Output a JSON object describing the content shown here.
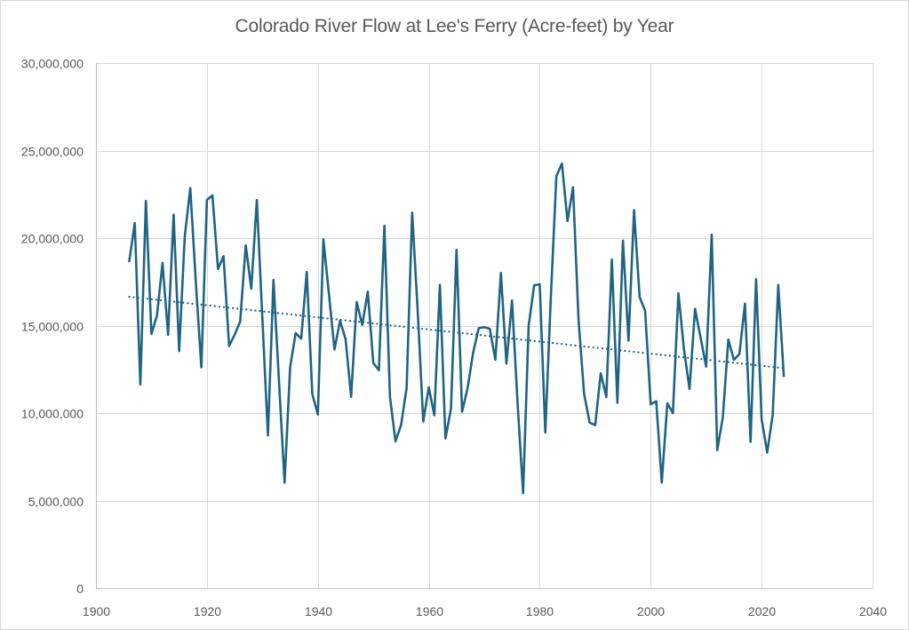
{
  "chart_data": {
    "type": "line",
    "title": "Colorado River Flow at Lee's Ferry (Acre-feet) by Year",
    "xlabel": "",
    "ylabel": "",
    "xlim": [
      1900,
      2040
    ],
    "ylim": [
      0,
      30000000
    ],
    "x_ticks": [
      1900,
      1920,
      1940,
      1960,
      1980,
      2000,
      2020,
      2040
    ],
    "x_tick_labels": [
      "1900",
      "1920",
      "1940",
      "1960",
      "1980",
      "2000",
      "2020",
      "2040"
    ],
    "y_ticks": [
      0,
      5000000,
      10000000,
      15000000,
      20000000,
      25000000,
      30000000
    ],
    "y_tick_labels": [
      "0",
      "5,000,000",
      "10,000,000",
      "15,000,000",
      "20,000,000",
      "25,000,000",
      "30,000,000"
    ],
    "grid": true,
    "legend": "none",
    "series": [
      {
        "name": "Flow",
        "color": "#1f6483",
        "x": [
          1906,
          1907,
          1908,
          1909,
          1910,
          1911,
          1912,
          1913,
          1914,
          1915,
          1916,
          1917,
          1918,
          1919,
          1920,
          1921,
          1922,
          1923,
          1924,
          1925,
          1926,
          1927,
          1928,
          1929,
          1930,
          1931,
          1932,
          1933,
          1934,
          1935,
          1936,
          1937,
          1938,
          1939,
          1940,
          1941,
          1942,
          1943,
          1944,
          1945,
          1946,
          1947,
          1948,
          1949,
          1950,
          1951,
          1952,
          1953,
          1954,
          1955,
          1956,
          1957,
          1958,
          1959,
          1960,
          1961,
          1962,
          1963,
          1964,
          1965,
          1966,
          1967,
          1968,
          1969,
          1970,
          1971,
          1972,
          1973,
          1974,
          1975,
          1976,
          1977,
          1978,
          1979,
          1980,
          1981,
          1982,
          1983,
          1984,
          1985,
          1986,
          1987,
          1988,
          1989,
          1990,
          1991,
          1992,
          1993,
          1994,
          1995,
          1996,
          1997,
          1998,
          1999,
          2000,
          2001,
          2002,
          2003,
          2004,
          2005,
          2006,
          2007,
          2008,
          2009,
          2010,
          2011,
          2012,
          2013,
          2014,
          2015,
          2016,
          2017,
          2018,
          2019,
          2020,
          2021,
          2022,
          2023,
          2024
        ],
        "values": [
          18680000,
          20860000,
          11640000,
          22130000,
          14530000,
          15580000,
          18580000,
          14480000,
          21340000,
          13550000,
          20070000,
          22860000,
          17500000,
          12620000,
          22180000,
          22440000,
          18240000,
          18970000,
          13840000,
          14480000,
          15240000,
          19590000,
          17110000,
          22180000,
          15400000,
          8730000,
          17610000,
          11800000,
          6030000,
          12620000,
          14570000,
          14260000,
          18070000,
          11100000,
          9920000,
          19930000,
          16800000,
          13640000,
          15280000,
          14230000,
          10930000,
          16350000,
          15040000,
          16940000,
          12870000,
          12450000,
          20710000,
          10930000,
          8390000,
          9320000,
          11440000,
          21460000,
          15840000,
          9530000,
          11470000,
          9880000,
          17330000,
          8560000,
          10250000,
          19330000,
          10080000,
          11440000,
          13470000,
          14860000,
          14910000,
          14820000,
          13050000,
          18010000,
          12830000,
          16430000,
          10600000,
          5430000,
          14990000,
          17310000,
          17360000,
          8900000,
          16600000,
          23540000,
          24260000,
          20980000,
          22910000,
          15300000,
          11100000,
          9460000,
          9320000,
          12280000,
          10930000,
          18770000,
          10590000,
          19860000,
          14140000,
          21600000,
          16650000,
          15840000,
          10510000,
          10680000,
          6030000,
          10570000,
          10000000,
          16850000,
          13650000,
          11390000,
          15960000,
          14310000,
          12660000,
          20200000,
          7890000,
          9750000,
          14200000,
          13050000,
          13380000,
          16260000,
          8360000,
          17660000,
          9660000,
          7750000,
          9910000,
          17320000,
          12120000
        ]
      }
    ],
    "trendline": {
      "type": "linear",
      "style": "dotted",
      "color": "#1f6483",
      "x": [
        1906,
        2024
      ],
      "values": [
        16650000,
        12570000
      ]
    }
  }
}
